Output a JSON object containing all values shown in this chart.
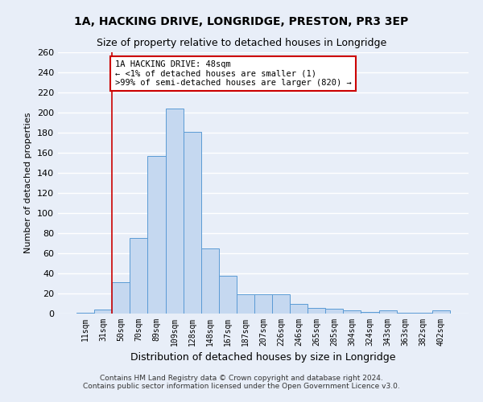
{
  "title": "1A, HACKING DRIVE, LONGRIDGE, PRESTON, PR3 3EP",
  "subtitle": "Size of property relative to detached houses in Longridge",
  "xlabel": "Distribution of detached houses by size in Longridge",
  "ylabel": "Number of detached properties",
  "categories": [
    "11sqm",
    "31sqm",
    "50sqm",
    "70sqm",
    "89sqm",
    "109sqm",
    "128sqm",
    "148sqm",
    "167sqm",
    "187sqm",
    "207sqm",
    "226sqm",
    "246sqm",
    "265sqm",
    "285sqm",
    "304sqm",
    "324sqm",
    "343sqm",
    "363sqm",
    "382sqm",
    "402sqm"
  ],
  "values": [
    1,
    4,
    31,
    75,
    157,
    204,
    181,
    65,
    38,
    19,
    19,
    19,
    10,
    6,
    5,
    3,
    2,
    3,
    1,
    1,
    3
  ],
  "bar_color": "#c5d8f0",
  "bar_edge_color": "#5b9bd5",
  "annotation_box_text": "1A HACKING DRIVE: 48sqm\n← <1% of detached houses are smaller (1)\n>99% of semi-detached houses are larger (820) →",
  "annotation_box_color": "#ffffff",
  "annotation_box_edge_color": "#cc0000",
  "vline_x": 1.5,
  "ylim": [
    0,
    260
  ],
  "yticks": [
    0,
    20,
    40,
    60,
    80,
    100,
    120,
    140,
    160,
    180,
    200,
    220,
    240,
    260
  ],
  "background_color": "#e8eef8",
  "grid_color": "#ffffff",
  "footer_line1": "Contains HM Land Registry data © Crown copyright and database right 2024.",
  "footer_line2": "Contains public sector information licensed under the Open Government Licence v3.0.",
  "title_fontsize": 10,
  "subtitle_fontsize": 9,
  "xlabel_fontsize": 9,
  "ylabel_fontsize": 8,
  "annot_fontsize": 7.5
}
